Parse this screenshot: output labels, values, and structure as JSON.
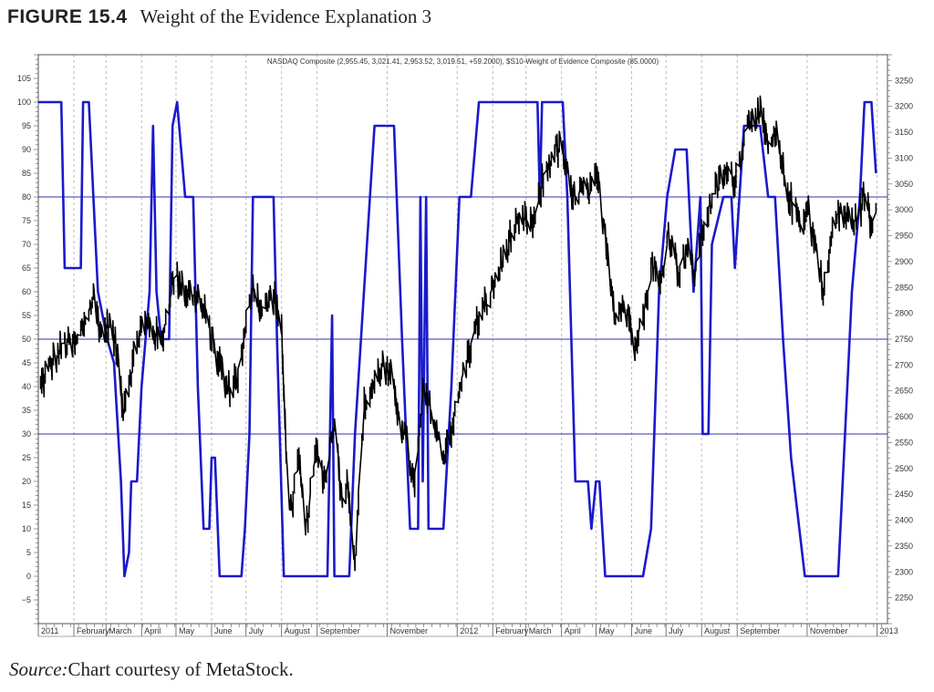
{
  "figure": {
    "label": "FIGURE 15.4",
    "title": "Weight of the Evidence Explanation 3"
  },
  "source": {
    "label": "Source:",
    "text": "Chart courtesy of MetaStock."
  },
  "colors": {
    "price": "#000000",
    "indicator": "#1a1acc",
    "reference_lines": "#3333aa",
    "grid": "#bbbbbb",
    "frame": "#555555"
  },
  "chart_data": {
    "type": "line",
    "title": "NASDAQ Composite (2,955.45, 3,021.41, 2,953.52, 3,019.51, +59.2000), $S10-Weight of Evidence Composite (85.0000)",
    "x_range": [
      "2011-01-01",
      "2013-01-10"
    ],
    "left_axis": {
      "ticks": [
        -5,
        0,
        5,
        10,
        15,
        20,
        25,
        30,
        35,
        40,
        45,
        50,
        55,
        60,
        65,
        70,
        75,
        80,
        85,
        90,
        95,
        100,
        105
      ],
      "range": [
        -10,
        110
      ]
    },
    "right_axis": {
      "ticks": [
        2250,
        2300,
        2350,
        2400,
        2450,
        2500,
        2550,
        2600,
        2650,
        2700,
        2750,
        2800,
        2850,
        2900,
        2950,
        3000,
        3050,
        3100,
        3150,
        3200,
        3250
      ],
      "range": [
        2200,
        3300
      ]
    },
    "month_labels": [
      {
        "label": "2011",
        "date": "2011-01-01"
      },
      {
        "label": "February",
        "date": "2011-02-01"
      },
      {
        "label": "March",
        "date": "2011-03-01"
      },
      {
        "label": "April",
        "date": "2011-04-01"
      },
      {
        "label": "May",
        "date": "2011-05-01"
      },
      {
        "label": "June",
        "date": "2011-06-01"
      },
      {
        "label": "July",
        "date": "2011-07-01"
      },
      {
        "label": "August",
        "date": "2011-08-01"
      },
      {
        "label": "September",
        "date": "2011-09-01"
      },
      {
        "label": "November",
        "date": "2011-11-01"
      },
      {
        "label": "2012",
        "date": "2012-01-01"
      },
      {
        "label": "February",
        "date": "2012-02-01"
      },
      {
        "label": "March",
        "date": "2012-03-01"
      },
      {
        "label": "April",
        "date": "2012-04-01"
      },
      {
        "label": "May",
        "date": "2012-05-01"
      },
      {
        "label": "June",
        "date": "2012-06-01"
      },
      {
        "label": "July",
        "date": "2012-07-01"
      },
      {
        "label": "August",
        "date": "2012-08-01"
      },
      {
        "label": "September",
        "date": "2012-09-01"
      },
      {
        "label": "November",
        "date": "2012-11-01"
      },
      {
        "label": "2013",
        "date": "2013-01-01"
      }
    ],
    "reference_lines": [
      80,
      50,
      30
    ],
    "grid": true,
    "series": [
      {
        "name": "NASDAQ Composite",
        "axis": "right",
        "points": [
          [
            "2011-01-03",
            2660
          ],
          [
            "2011-01-12",
            2700
          ],
          [
            "2011-01-24",
            2740
          ],
          [
            "2011-02-03",
            2740
          ],
          [
            "2011-02-18",
            2830
          ],
          [
            "2011-02-25",
            2760
          ],
          [
            "2011-03-04",
            2780
          ],
          [
            "2011-03-10",
            2730
          ],
          [
            "2011-03-16",
            2620
          ],
          [
            "2011-03-22",
            2680
          ],
          [
            "2011-03-31",
            2770
          ],
          [
            "2011-04-08",
            2780
          ],
          [
            "2011-04-18",
            2740
          ],
          [
            "2011-04-28",
            2860
          ],
          [
            "2011-05-02",
            2870
          ],
          [
            "2011-05-10",
            2840
          ],
          [
            "2011-05-20",
            2830
          ],
          [
            "2011-05-27",
            2790
          ],
          [
            "2011-06-03",
            2740
          ],
          [
            "2011-06-15",
            2650
          ],
          [
            "2011-06-24",
            2680
          ],
          [
            "2011-06-29",
            2740
          ],
          [
            "2011-07-07",
            2860
          ],
          [
            "2011-07-15",
            2800
          ],
          [
            "2011-07-25",
            2840
          ],
          [
            "2011-08-01",
            2760
          ],
          [
            "2011-08-05",
            2530
          ],
          [
            "2011-08-09",
            2420
          ],
          [
            "2011-08-16",
            2510
          ],
          [
            "2011-08-22",
            2380
          ],
          [
            "2011-08-31",
            2530
          ],
          [
            "2011-09-08",
            2480
          ],
          [
            "2011-09-16",
            2600
          ],
          [
            "2011-09-22",
            2450
          ],
          [
            "2011-09-28",
            2470
          ],
          [
            "2011-10-04",
            2320
          ],
          [
            "2011-10-12",
            2620
          ],
          [
            "2011-10-24",
            2680
          ],
          [
            "2011-10-28",
            2700
          ],
          [
            "2011-11-04",
            2670
          ],
          [
            "2011-11-10",
            2620
          ],
          [
            "2011-11-18",
            2550
          ],
          [
            "2011-11-25",
            2460
          ],
          [
            "2011-12-02",
            2640
          ],
          [
            "2011-12-09",
            2620
          ],
          [
            "2011-12-19",
            2520
          ],
          [
            "2011-12-30",
            2600
          ],
          [
            "2012-01-06",
            2680
          ],
          [
            "2012-01-18",
            2780
          ],
          [
            "2012-01-27",
            2820
          ],
          [
            "2012-02-08",
            2890
          ],
          [
            "2012-02-17",
            2950
          ],
          [
            "2012-02-29",
            2980
          ],
          [
            "2012-03-08",
            2970
          ],
          [
            "2012-03-15",
            3050
          ],
          [
            "2012-03-26",
            3120
          ],
          [
            "2012-04-02",
            3110
          ],
          [
            "2012-04-10",
            3020
          ],
          [
            "2012-04-17",
            3040
          ],
          [
            "2012-04-25",
            3030
          ],
          [
            "2012-05-02",
            3060
          ],
          [
            "2012-05-09",
            2960
          ],
          [
            "2012-05-18",
            2790
          ],
          [
            "2012-05-25",
            2820
          ],
          [
            "2012-06-04",
            2750
          ],
          [
            "2012-06-12",
            2800
          ],
          [
            "2012-06-19",
            2900
          ],
          [
            "2012-06-26",
            2850
          ],
          [
            "2012-07-03",
            2960
          ],
          [
            "2012-07-12",
            2880
          ],
          [
            "2012-07-20",
            2930
          ],
          [
            "2012-07-25",
            2870
          ],
          [
            "2012-08-03",
            2970
          ],
          [
            "2012-08-10",
            3020
          ],
          [
            "2012-08-20",
            3070
          ],
          [
            "2012-08-31",
            3060
          ],
          [
            "2012-09-07",
            3140
          ],
          [
            "2012-09-14",
            3190
          ],
          [
            "2012-09-21",
            3180
          ],
          [
            "2012-09-28",
            3120
          ],
          [
            "2012-10-05",
            3140
          ],
          [
            "2012-10-12",
            3060
          ],
          [
            "2012-10-19",
            3010
          ],
          [
            "2012-10-26",
            2980
          ],
          [
            "2012-11-02",
            3000
          ],
          [
            "2012-11-09",
            2920
          ],
          [
            "2012-11-16",
            2840
          ],
          [
            "2012-11-23",
            2960
          ],
          [
            "2012-11-30",
            3000
          ],
          [
            "2012-12-07",
            2980
          ],
          [
            "2012-12-14",
            2980
          ],
          [
            "2012-12-21",
            3030
          ],
          [
            "2012-12-28",
            2960
          ],
          [
            "2012-12-31",
            3020
          ]
        ]
      },
      {
        "name": "$S10-Weight of Evidence Composite",
        "axis": "left",
        "points": [
          [
            "2011-01-01",
            100
          ],
          [
            "2011-01-21",
            100
          ],
          [
            "2011-01-24",
            65
          ],
          [
            "2011-02-07",
            65
          ],
          [
            "2011-02-09",
            100
          ],
          [
            "2011-02-14",
            100
          ],
          [
            "2011-02-22",
            60
          ],
          [
            "2011-03-02",
            50
          ],
          [
            "2011-03-08",
            45
          ],
          [
            "2011-03-14",
            20
          ],
          [
            "2011-03-17",
            0
          ],
          [
            "2011-03-21",
            5
          ],
          [
            "2011-03-23",
            20
          ],
          [
            "2011-03-28",
            20
          ],
          [
            "2011-04-01",
            40
          ],
          [
            "2011-04-08",
            60
          ],
          [
            "2011-04-11",
            95
          ],
          [
            "2011-04-14",
            60
          ],
          [
            "2011-04-18",
            50
          ],
          [
            "2011-04-25",
            50
          ],
          [
            "2011-04-28",
            95
          ],
          [
            "2011-05-02",
            100
          ],
          [
            "2011-05-09",
            80
          ],
          [
            "2011-05-16",
            80
          ],
          [
            "2011-05-20",
            40
          ],
          [
            "2011-05-25",
            10
          ],
          [
            "2011-05-30",
            10
          ],
          [
            "2011-06-01",
            25
          ],
          [
            "2011-06-04",
            25
          ],
          [
            "2011-06-08",
            0
          ],
          [
            "2011-06-27",
            0
          ],
          [
            "2011-06-30",
            10
          ],
          [
            "2011-07-04",
            30
          ],
          [
            "2011-07-07",
            80
          ],
          [
            "2011-07-25",
            80
          ],
          [
            "2011-07-28",
            50
          ],
          [
            "2011-08-03",
            0
          ],
          [
            "2011-09-10",
            0
          ],
          [
            "2011-09-14",
            55
          ],
          [
            "2011-09-16",
            0
          ],
          [
            "2011-09-29",
            0
          ],
          [
            "2011-10-04",
            30
          ],
          [
            "2011-10-17",
            80
          ],
          [
            "2011-10-21",
            95
          ],
          [
            "2011-11-07",
            95
          ],
          [
            "2011-11-14",
            50
          ],
          [
            "2011-11-21",
            10
          ],
          [
            "2011-11-28",
            10
          ],
          [
            "2011-11-30",
            80
          ],
          [
            "2011-12-02",
            20
          ],
          [
            "2011-12-05",
            80
          ],
          [
            "2011-12-07",
            10
          ],
          [
            "2011-12-20",
            10
          ],
          [
            "2011-12-27",
            40
          ],
          [
            "2012-01-03",
            80
          ],
          [
            "2012-01-13",
            80
          ],
          [
            "2012-01-20",
            100
          ],
          [
            "2012-03-11",
            100
          ],
          [
            "2012-03-13",
            80
          ],
          [
            "2012-03-15",
            100
          ],
          [
            "2012-04-02",
            100
          ],
          [
            "2012-04-06",
            80
          ],
          [
            "2012-04-13",
            20
          ],
          [
            "2012-04-24",
            20
          ],
          [
            "2012-04-27",
            10
          ],
          [
            "2012-05-01",
            20
          ],
          [
            "2012-05-04",
            20
          ],
          [
            "2012-05-09",
            0
          ],
          [
            "2012-06-11",
            0
          ],
          [
            "2012-06-18",
            10
          ],
          [
            "2012-06-25",
            60
          ],
          [
            "2012-07-02",
            80
          ],
          [
            "2012-07-09",
            90
          ],
          [
            "2012-07-19",
            90
          ],
          [
            "2012-07-25",
            60
          ],
          [
            "2012-07-31",
            80
          ],
          [
            "2012-08-02",
            30
          ],
          [
            "2012-08-07",
            30
          ],
          [
            "2012-08-10",
            70
          ],
          [
            "2012-08-20",
            80
          ],
          [
            "2012-08-27",
            80
          ],
          [
            "2012-08-30",
            65
          ],
          [
            "2012-09-03",
            80
          ],
          [
            "2012-09-07",
            95
          ],
          [
            "2012-09-21",
            95
          ],
          [
            "2012-09-28",
            80
          ],
          [
            "2012-10-04",
            80
          ],
          [
            "2012-10-11",
            50
          ],
          [
            "2012-10-18",
            25
          ],
          [
            "2012-10-30",
            0
          ],
          [
            "2012-11-28",
            0
          ],
          [
            "2012-12-03",
            25
          ],
          [
            "2012-12-10",
            60
          ],
          [
            "2012-12-17",
            80
          ],
          [
            "2012-12-21",
            100
          ],
          [
            "2012-12-27",
            100
          ],
          [
            "2012-12-31",
            85
          ]
        ]
      }
    ]
  }
}
